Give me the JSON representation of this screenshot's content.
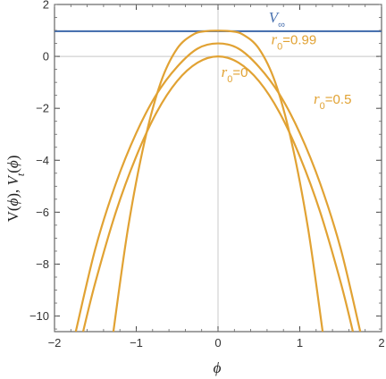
{
  "chart_data": {
    "type": "line",
    "title": "",
    "xlabel": "ϕ",
    "ylabel": "V(ϕ), V_t(ϕ)",
    "xlim": [
      -2,
      2
    ],
    "ylim": [
      -10.6,
      2
    ],
    "xticks": [
      -2,
      -1,
      0,
      1,
      2
    ],
    "yticks": [
      2,
      0,
      -2,
      -4,
      -6,
      -8,
      -10
    ],
    "xtick_labels": [
      "−2",
      "−1",
      "0",
      "1",
      "2"
    ],
    "ytick_labels": [
      "2",
      "0",
      "−2",
      "−4",
      "−6",
      "−8",
      "−10"
    ],
    "grid": "axes lines only at x=0 and y=0",
    "series": [
      {
        "name": "V∞",
        "color": "#4a72b0",
        "x": [
          -2,
          2
        ],
        "y": [
          0.97,
          0.97
        ]
      },
      {
        "name": "r0=0",
        "color": "#e1a233",
        "x": [
          -1.65,
          -1.5,
          -1.25,
          -1.0,
          -0.75,
          -0.5,
          -0.25,
          0,
          0.25,
          0.5,
          0.75,
          1.0,
          1.25,
          1.5,
          1.65
        ],
        "y": [
          -10.6,
          -8.7,
          -6.0,
          -3.85,
          -2.15,
          -0.95,
          -0.24,
          0,
          -0.24,
          -0.95,
          -2.15,
          -3.85,
          -6.0,
          -8.7,
          -10.6
        ]
      },
      {
        "name": "r0=0.5",
        "color": "#e1a233",
        "x": [
          -1.74,
          -1.5,
          -1.25,
          -1.0,
          -0.75,
          -0.5,
          -0.25,
          0,
          0.25,
          0.5,
          0.75,
          1.0,
          1.25,
          1.5,
          1.74
        ],
        "y": [
          -10.6,
          -7.4,
          -4.9,
          -2.95,
          -1.45,
          -0.4,
          0.3,
          0.5,
          0.3,
          -0.4,
          -1.45,
          -2.95,
          -4.9,
          -7.4,
          -10.6
        ]
      },
      {
        "name": "r0=0.99",
        "color": "#e1a233",
        "x": [
          -1.28,
          -1.1,
          -0.9,
          -0.7,
          -0.5,
          -0.3,
          -0.15,
          0,
          0.15,
          0.3,
          0.5,
          0.7,
          0.9,
          1.1,
          1.28
        ],
        "y": [
          -10.6,
          -6.6,
          -3.3,
          -1.0,
          0.3,
          0.85,
          0.97,
          0.99,
          0.97,
          0.85,
          0.3,
          -1.0,
          -3.3,
          -6.6,
          -10.6
        ]
      }
    ],
    "annotations": [
      {
        "label": "V∞",
        "x": 0.62,
        "y": 1.32,
        "color": "#4a72b0"
      },
      {
        "label": "r0=0.99",
        "x": 0.65,
        "y": 0.47,
        "color": "#e1a233"
      },
      {
        "label": "r0=0",
        "x": 0.04,
        "y": -0.78,
        "color": "#e1a233"
      },
      {
        "label": "r0=0.5",
        "x": 1.17,
        "y": -1.82,
        "color": "#e1a233"
      }
    ]
  }
}
